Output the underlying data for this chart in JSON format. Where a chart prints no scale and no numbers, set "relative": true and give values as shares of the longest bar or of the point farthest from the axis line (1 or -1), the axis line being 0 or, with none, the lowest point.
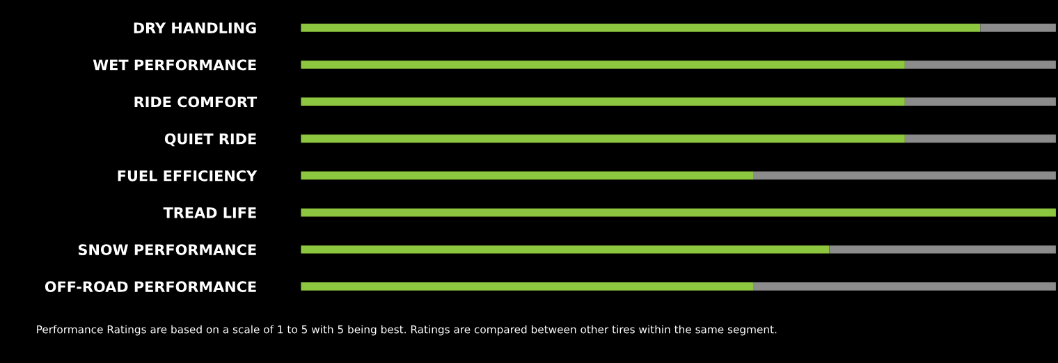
{
  "chart_data": {
    "type": "bar",
    "orientation": "horizontal",
    "stacked": true,
    "relative": true,
    "categories": [
      "DRY HANDLING",
      "WET PERFORMANCE",
      "RIDE COMFORT",
      "QUIET RIDE",
      "FUEL EFFICIENCY",
      "TREAD LIFE",
      "SNOW PERFORMANCE",
      "OFF-ROAD PERFORMANCE"
    ],
    "series": [
      {
        "color": "#8dc63f",
        "values": [
          0.9,
          0.8,
          0.8,
          0.8,
          0.6,
          1,
          0.7,
          0.6
        ]
      },
      {
        "color": "#8c8c8c",
        "values": [
          0.1,
          0.2,
          0.2,
          0.2,
          0.4,
          0,
          0.3,
          0.4
        ]
      }
    ],
    "annotations": [
      "Performance Ratings are based on a scale of 1 to 5 with 5 being best. Ratings are compared between other tires within the same segment."
    ]
  }
}
